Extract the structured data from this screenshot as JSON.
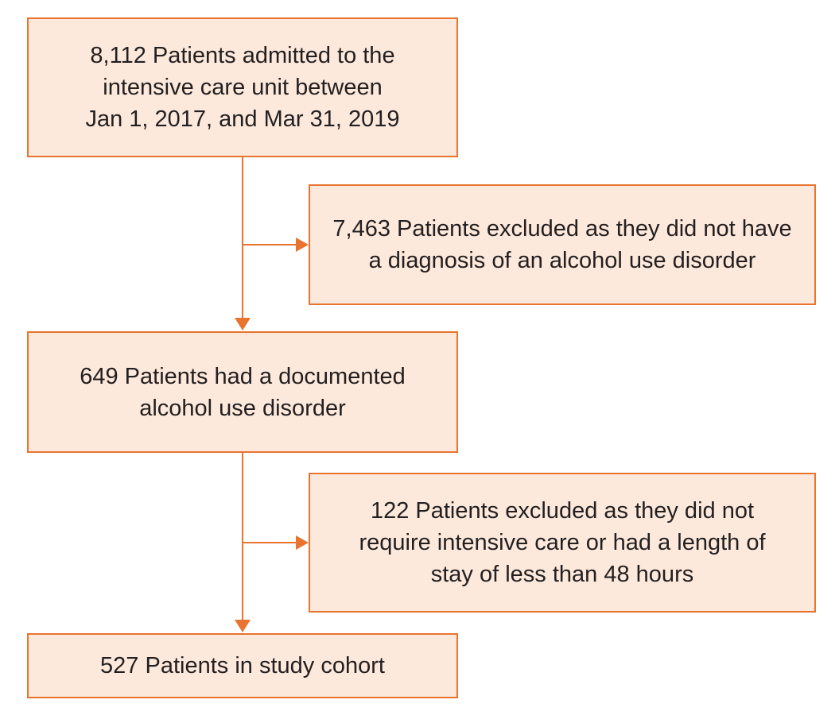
{
  "diagram": {
    "accent_color": "#e8742f",
    "box_fill": "#fde9dc",
    "boxes": [
      {
        "id": "admitted",
        "lines": [
          "8,112 Patients admitted to the",
          "intensive care unit between",
          "Jan 1, 2017, and Mar 31, 2019"
        ]
      },
      {
        "id": "excluded-no-aud",
        "lines": [
          "7,463 Patients excluded as they did not have",
          "a diagnosis of an alcohol use disorder"
        ]
      },
      {
        "id": "documented-aud",
        "lines": [
          "649 Patients had a documented",
          "alcohol use disorder"
        ]
      },
      {
        "id": "excluded-los",
        "lines": [
          "122 Patients excluded as they did not",
          "require intensive care or had a length of",
          "stay of less than 48 hours"
        ]
      },
      {
        "id": "study-cohort",
        "lines": [
          "527 Patients in study cohort"
        ]
      }
    ]
  }
}
